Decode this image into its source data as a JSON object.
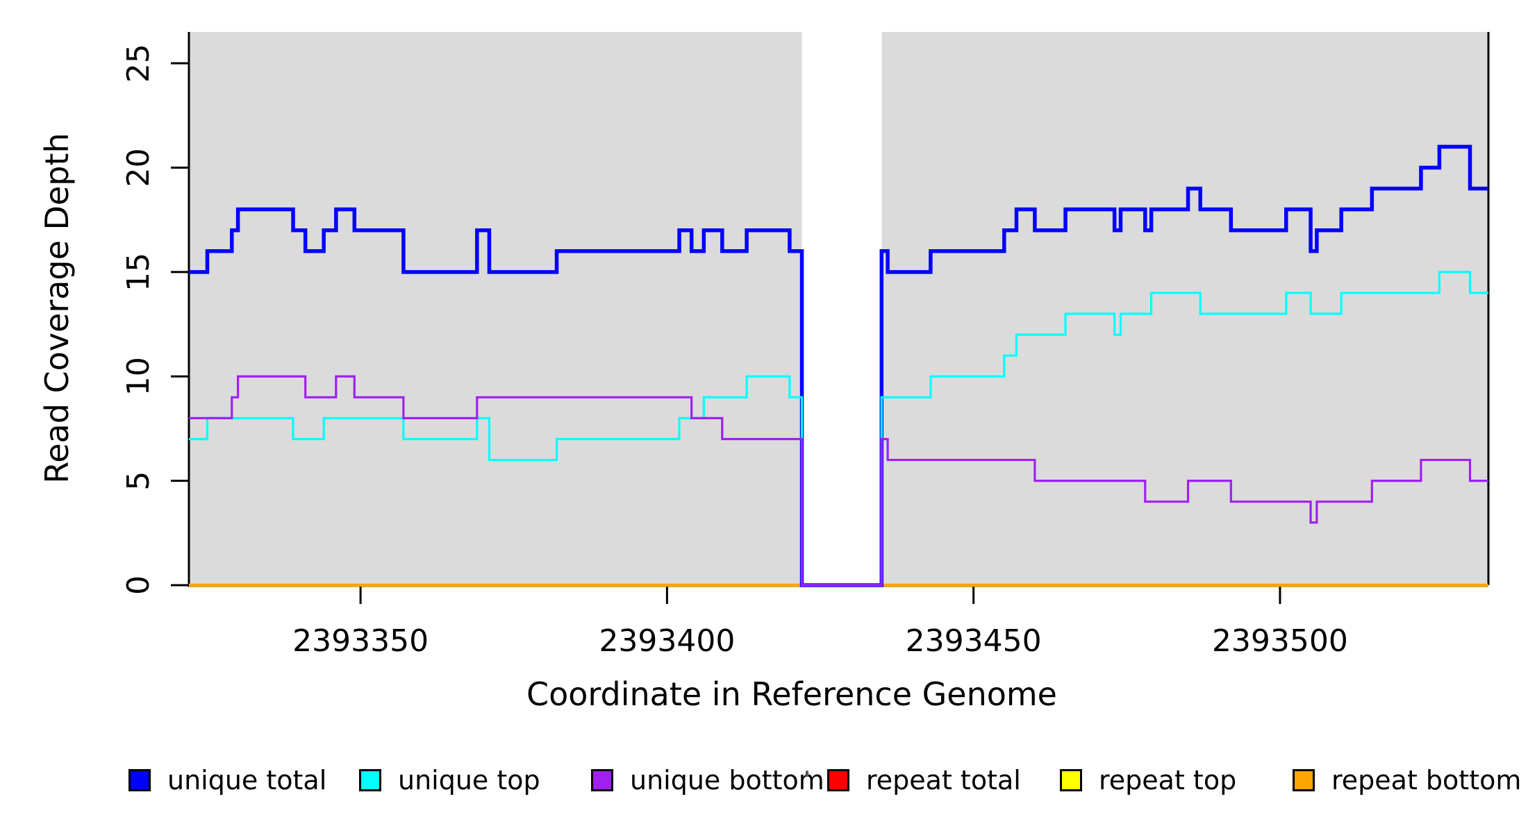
{
  "figure": {
    "background_color": "#FFFFFF",
    "panel_color": "#DBDBDB",
    "axis_color": "#000000"
  },
  "chart_data": {
    "type": "line",
    "subtype": "step-coverage-plot",
    "title": "",
    "xlabel": "Coordinate in Reference Genome",
    "ylabel": "Read Coverage Depth",
    "xlim": [
      2393322,
      2393534
    ],
    "ylim": [
      0,
      26.5
    ],
    "x_ticks": [
      2393350,
      2393400,
      2393450,
      2393500
    ],
    "y_ticks": [
      0,
      5,
      10,
      15,
      20,
      25
    ],
    "grid": false,
    "shaded_regions": [
      {
        "from": 2393322,
        "to": 2393422
      },
      {
        "from": 2393435,
        "to": 2393534
      }
    ],
    "gap_region": {
      "from": 2393422,
      "to": 2393435
    },
    "series": [
      {
        "name": "unique total",
        "color": "#0000FF",
        "width": 5.5,
        "z": 4,
        "points": [
          [
            2393322,
            15
          ],
          [
            2393325,
            16
          ],
          [
            2393329,
            17
          ],
          [
            2393330,
            18
          ],
          [
            2393339,
            17
          ],
          [
            2393341,
            16
          ],
          [
            2393344,
            17
          ],
          [
            2393346,
            18
          ],
          [
            2393349,
            17
          ],
          [
            2393357,
            15
          ],
          [
            2393369,
            17
          ],
          [
            2393371,
            15
          ],
          [
            2393382,
            16
          ],
          [
            2393402,
            17
          ],
          [
            2393404,
            16
          ],
          [
            2393406,
            17
          ],
          [
            2393409,
            16
          ],
          [
            2393413,
            17
          ],
          [
            2393420,
            16
          ],
          [
            2393422,
            0
          ],
          [
            2393435,
            16
          ],
          [
            2393436,
            15
          ],
          [
            2393443,
            16
          ],
          [
            2393455,
            17
          ],
          [
            2393457,
            18
          ],
          [
            2393460,
            17
          ],
          [
            2393465,
            18
          ],
          [
            2393473,
            17
          ],
          [
            2393474,
            18
          ],
          [
            2393478,
            17
          ],
          [
            2393479,
            18
          ],
          [
            2393485,
            19
          ],
          [
            2393487,
            18
          ],
          [
            2393492,
            17
          ],
          [
            2393501,
            18
          ],
          [
            2393505,
            16
          ],
          [
            2393506,
            17
          ],
          [
            2393510,
            18
          ],
          [
            2393515,
            19
          ],
          [
            2393523,
            20
          ],
          [
            2393526,
            21
          ],
          [
            2393531,
            19
          ]
        ]
      },
      {
        "name": "unique top",
        "color": "#00FFFF",
        "width": 3.2,
        "z": 5,
        "points": [
          [
            2393322,
            7
          ],
          [
            2393325,
            8
          ],
          [
            2393339,
            7
          ],
          [
            2393344,
            8
          ],
          [
            2393357,
            7
          ],
          [
            2393369,
            8
          ],
          [
            2393371,
            6
          ],
          [
            2393382,
            7
          ],
          [
            2393402,
            8
          ],
          [
            2393406,
            9
          ],
          [
            2393413,
            10
          ],
          [
            2393420,
            9
          ],
          [
            2393422,
            0
          ],
          [
            2393435,
            9
          ],
          [
            2393443,
            10
          ],
          [
            2393455,
            11
          ],
          [
            2393457,
            12
          ],
          [
            2393465,
            13
          ],
          [
            2393473,
            12
          ],
          [
            2393474,
            13
          ],
          [
            2393479,
            14
          ],
          [
            2393487,
            13
          ],
          [
            2393501,
            14
          ],
          [
            2393505,
            13
          ],
          [
            2393510,
            14
          ],
          [
            2393526,
            15
          ],
          [
            2393531,
            14
          ]
        ]
      },
      {
        "name": "unique bottom",
        "color": "#A020F0",
        "width": 3.2,
        "z": 6,
        "points": [
          [
            2393322,
            8
          ],
          [
            2393329,
            9
          ],
          [
            2393330,
            10
          ],
          [
            2393341,
            9
          ],
          [
            2393346,
            10
          ],
          [
            2393349,
            9
          ],
          [
            2393357,
            8
          ],
          [
            2393369,
            9
          ],
          [
            2393404,
            8
          ],
          [
            2393409,
            7
          ],
          [
            2393422,
            0
          ],
          [
            2393435,
            7
          ],
          [
            2393436,
            6
          ],
          [
            2393460,
            5
          ],
          [
            2393478,
            4
          ],
          [
            2393485,
            5
          ],
          [
            2393492,
            4
          ],
          [
            2393505,
            3
          ],
          [
            2393506,
            4
          ],
          [
            2393515,
            5
          ],
          [
            2393523,
            6
          ],
          [
            2393531,
            5
          ]
        ]
      },
      {
        "name": "repeat total",
        "color": "#FF0000",
        "width": 3.2,
        "z": 1,
        "points": [
          [
            2393322,
            0
          ]
        ]
      },
      {
        "name": "repeat top",
        "color": "#FFFF00",
        "width": 3.2,
        "z": 2,
        "points": [
          [
            2393322,
            0
          ]
        ]
      },
      {
        "name": "repeat bottom",
        "color": "#FFA500",
        "width": 4.5,
        "z": 3,
        "points": [
          [
            2393322,
            0
          ]
        ]
      }
    ],
    "legend": {
      "position": "bottom",
      "entries": [
        {
          "label": "unique total",
          "color": "#0000FF"
        },
        {
          "label": "unique top",
          "color": "#00FFFF"
        },
        {
          "label": "unique bottom",
          "color": "#A020F0"
        },
        {
          "label": "repeat total",
          "color": "#FF0000"
        },
        {
          "label": "repeat top",
          "color": "#FFFF00"
        },
        {
          "label": "repeat bottom",
          "color": "#FFA500"
        }
      ]
    }
  }
}
